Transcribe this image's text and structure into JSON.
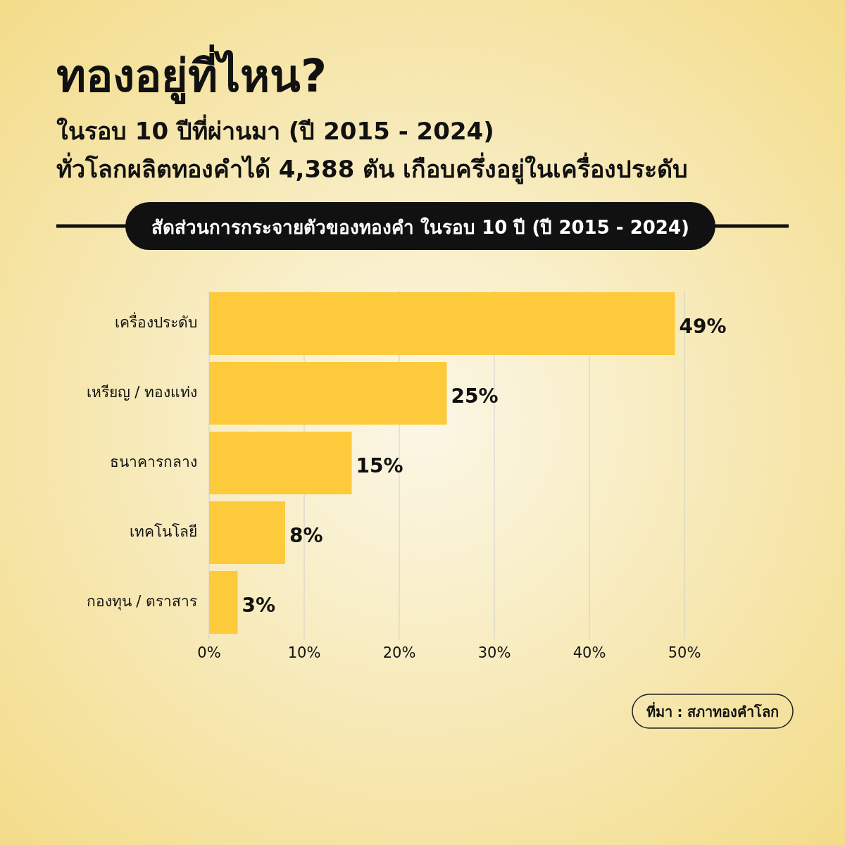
{
  "chart_data": {
    "type": "bar",
    "orientation": "horizontal",
    "title": "ทองอยู่ที่ไหน?",
    "subtitle": "ในรอบ 10 ปีที่ผ่านมา (ปี 2015 - 2024)\nทั่วโลกผลิตทองคำได้ 4,388 ตัน เกือบครึ่งอยู่ในเครื่องประดับ",
    "annotations": [
      "สัดส่วนการกระจายตัวของทองคำ ในรอบ 10 ปี (ปี 2015 - 2024)",
      "ที่มา : สภาทองคำโลก"
    ],
    "categories": [
      "เครื่องประดับ",
      "เหรียญ / ทองแท่ง",
      "ธนาคารกลาง",
      "เทคโนโลยี",
      "กองทุน / ตราสาร"
    ],
    "values": [
      49,
      25,
      15,
      8,
      3
    ],
    "value_labels": [
      "49%",
      "25%",
      "15%",
      "8%",
      "3%"
    ],
    "color": "#fdca3c",
    "xlim": [
      0,
      50
    ],
    "xticks": [
      {
        "value": 0,
        "label": "0%"
      },
      {
        "value": 10,
        "label": "10%"
      },
      {
        "value": 20,
        "label": "20%"
      },
      {
        "value": 30,
        "label": "30%"
      },
      {
        "value": 40,
        "label": "40%"
      },
      {
        "value": 50,
        "label": "50%"
      }
    ],
    "grid": "x"
  }
}
